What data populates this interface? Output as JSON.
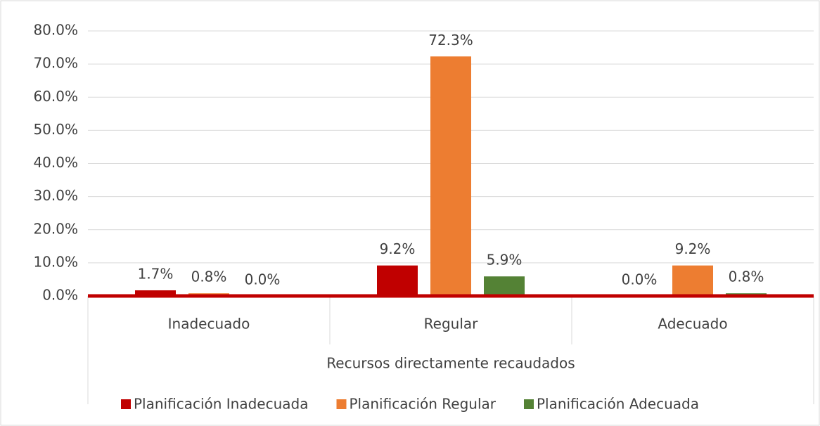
{
  "chart_data": {
    "type": "bar",
    "x_label": "Recursos directamente recaudados",
    "categories": [
      "Inadecuado",
      "Regular",
      "Adecuado"
    ],
    "series": [
      {
        "name": "Planificación Inadecuada",
        "color": "#c00000",
        "values": [
          1.7,
          9.2,
          0.0
        ],
        "value_labels": [
          "1.7%",
          "9.2%",
          "0.0%"
        ]
      },
      {
        "name": "Planificación Regular",
        "color": "#ed7d31",
        "values": [
          0.8,
          72.3,
          9.2
        ],
        "value_labels": [
          "0.8%",
          "72.3%",
          "9.2%"
        ]
      },
      {
        "name": "Planificación Adecuada",
        "color": "#548235",
        "values": [
          0.0,
          5.9,
          0.8
        ],
        "value_labels": [
          "0.0%",
          "5.9%",
          "0.8%"
        ]
      }
    ],
    "ylim": [
      0,
      80
    ],
    "yticks": [
      {
        "value": 0,
        "label": "0.0%"
      },
      {
        "value": 10,
        "label": "10.0%"
      },
      {
        "value": 20,
        "label": "20.0%"
      },
      {
        "value": 30,
        "label": "30.0%"
      },
      {
        "value": 40,
        "label": "40.0%"
      },
      {
        "value": 50,
        "label": "50.0%"
      },
      {
        "value": 60,
        "label": "60.0%"
      },
      {
        "value": 70,
        "label": "70.0%"
      },
      {
        "value": 80,
        "label": "80.0%"
      }
    ],
    "grid": true,
    "legend": "bottom"
  }
}
